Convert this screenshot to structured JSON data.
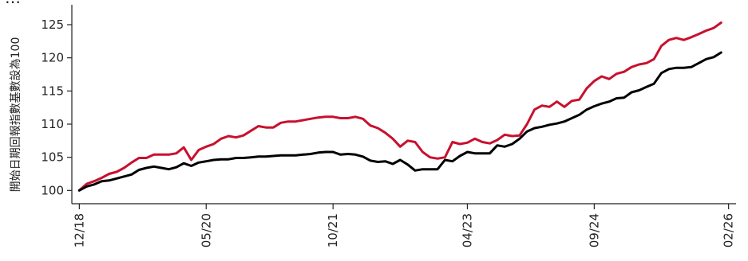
{
  "chart_data": {
    "type": "line",
    "title": "…",
    "ylabel": "開始日期回報指數基數設為100",
    "ylim": [
      98,
      128
    ],
    "yticks": [
      100,
      105,
      110,
      115,
      120,
      125
    ],
    "x_tick_labels": [
      "12/18",
      "05/20",
      "10/21",
      "04/23",
      "09/24",
      "02/26"
    ],
    "x_tick_positions": [
      0,
      17,
      34,
      52,
      69,
      87
    ],
    "x_range": [
      -1,
      88
    ],
    "grid": false,
    "colors": {
      "red_series": "#c8102e",
      "black_series": "#000000",
      "axis": "#222222"
    },
    "series": [
      {
        "color": "#c8102e",
        "values": [
          100.0,
          101.0,
          101.4,
          101.9,
          102.5,
          102.8,
          103.4,
          104.2,
          104.9,
          104.9,
          105.4,
          105.4,
          105.4,
          105.6,
          106.5,
          104.6,
          106.1,
          106.6,
          107.0,
          107.8,
          108.2,
          108.0,
          108.3,
          109.0,
          109.7,
          109.5,
          109.5,
          110.2,
          110.4,
          110.4,
          110.6,
          110.8,
          111.0,
          111.1,
          111.1,
          110.9,
          110.9,
          111.1,
          110.8,
          109.8,
          109.4,
          108.7,
          107.8,
          106.6,
          107.5,
          107.3,
          105.8,
          105.0,
          104.8,
          105.0,
          107.3,
          107.0,
          107.2,
          107.8,
          107.3,
          107.1,
          107.6,
          108.4,
          108.2,
          108.3,
          110.0,
          112.2,
          112.8,
          112.6,
          113.4,
          112.6,
          113.5,
          113.7,
          115.4,
          116.5,
          117.2,
          116.8,
          117.6,
          117.9,
          118.6,
          119.0,
          119.2,
          119.8,
          121.8,
          122.7,
          123.0,
          122.7,
          123.1,
          123.6,
          124.1,
          124.5,
          125.3
        ]
      },
      {
        "color": "#000000",
        "values": [
          100.0,
          100.6,
          100.9,
          101.4,
          101.5,
          101.8,
          102.1,
          102.4,
          103.1,
          103.4,
          103.6,
          103.4,
          103.2,
          103.5,
          104.1,
          103.7,
          104.2,
          104.4,
          104.6,
          104.7,
          104.7,
          104.9,
          104.9,
          105.0,
          105.1,
          105.1,
          105.2,
          105.3,
          105.3,
          105.3,
          105.4,
          105.5,
          105.7,
          105.8,
          105.8,
          105.4,
          105.5,
          105.4,
          105.1,
          104.5,
          104.3,
          104.4,
          104.0,
          104.6,
          103.9,
          103.0,
          103.2,
          103.2,
          103.2,
          104.6,
          104.4,
          105.2,
          105.8,
          105.6,
          105.6,
          105.6,
          106.8,
          106.6,
          107.0,
          107.8,
          108.9,
          109.4,
          109.6,
          109.9,
          110.1,
          110.4,
          110.9,
          111.4,
          112.2,
          112.7,
          113.1,
          113.4,
          113.9,
          114.0,
          114.8,
          115.1,
          115.6,
          116.1,
          117.7,
          118.3,
          118.5,
          118.5,
          118.6,
          119.2,
          119.8,
          120.1,
          120.8
        ]
      }
    ]
  }
}
